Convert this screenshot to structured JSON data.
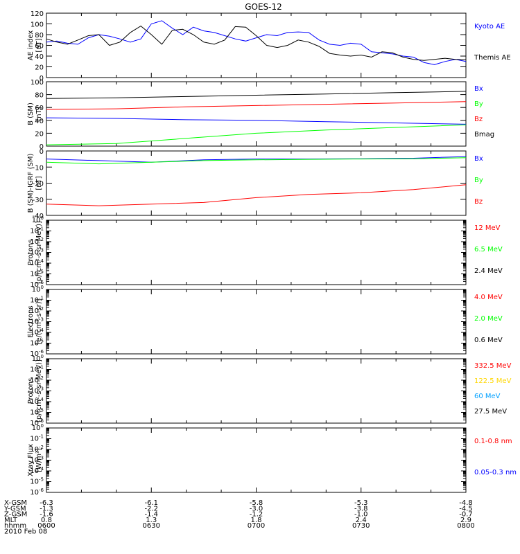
{
  "title": "GOES-12",
  "colors": {
    "black": "#000000",
    "blue": "#0000ff",
    "red": "#ff0000",
    "green": "#00ff00",
    "yellow": "#ffd700",
    "cyan": "#00a0ff"
  },
  "x_axis": {
    "rows": [
      {
        "label": "X-GSM",
        "values": [
          "-6.3",
          "-6.1",
          "-5.8",
          "-5.3",
          "-4.8"
        ]
      },
      {
        "label": "Y-GSM",
        "values": [
          "-1.3",
          "-2.2",
          "-3.0",
          "-3.8",
          "-4.5"
        ]
      },
      {
        "label": "Z-GSM",
        "values": [
          "-1.6",
          "-1.4",
          "-1.2",
          "-1.0",
          "-0.7"
        ]
      },
      {
        "label": "MLT",
        "values": [
          "0.8",
          "1.3",
          "1.8",
          "2.4",
          "2.9"
        ]
      },
      {
        "label": "hhmm",
        "values": [
          "0600",
          "0630",
          "0700",
          "0730",
          "0800"
        ]
      }
    ],
    "date": "2010 Feb 08"
  },
  "chart_data": [
    {
      "type": "line",
      "ylabel": "AE index",
      "yunit": "[nT]",
      "ylim": [
        0,
        120
      ],
      "yticks": [
        "0",
        "20",
        "40",
        "60",
        "80",
        "100",
        "120"
      ],
      "xlim": [
        0,
        120
      ],
      "series": [
        {
          "name": "Kyoto AE",
          "color": "#0000ff",
          "x": [
            0,
            3,
            6,
            9,
            12,
            15,
            18,
            21,
            24,
            27,
            30,
            33,
            36,
            39,
            42,
            45,
            48,
            51,
            54,
            57,
            60,
            63,
            66,
            69,
            72,
            75,
            78,
            81,
            84,
            87,
            90,
            93,
            96,
            99,
            102,
            105,
            108,
            111,
            114,
            117,
            120
          ],
          "y": [
            66,
            68,
            64,
            62,
            74,
            80,
            77,
            72,
            66,
            72,
            100,
            106,
            92,
            80,
            94,
            87,
            84,
            78,
            72,
            68,
            74,
            80,
            78,
            84,
            85,
            84,
            70,
            62,
            60,
            64,
            62,
            48,
            46,
            44,
            40,
            38,
            28,
            24,
            30,
            34,
            30
          ]
        },
        {
          "name": "Themis AE",
          "color": "#000000",
          "x": [
            0,
            3,
            6,
            9,
            12,
            15,
            18,
            21,
            24,
            27,
            30,
            33,
            36,
            39,
            42,
            45,
            48,
            51,
            54,
            57,
            60,
            63,
            66,
            69,
            72,
            75,
            78,
            81,
            84,
            87,
            90,
            93,
            96,
            99,
            102,
            105,
            108,
            111,
            114,
            117,
            120
          ],
          "y": [
            72,
            66,
            62,
            70,
            78,
            80,
            60,
            66,
            84,
            96,
            80,
            62,
            88,
            90,
            80,
            66,
            62,
            70,
            95,
            94,
            78,
            60,
            56,
            60,
            70,
            66,
            58,
            45,
            42,
            40,
            42,
            38,
            48,
            46,
            38,
            34,
            32,
            34,
            36,
            34,
            33
          ]
        }
      ],
      "legend": [
        {
          "text": "Kyoto AE",
          "color": "#0000ff"
        },
        {
          "text": "Themis AE",
          "color": "#000000"
        }
      ]
    },
    {
      "type": "line",
      "ylabel": "B (SM)",
      "yunit": "[nT]",
      "ylim": [
        0,
        100
      ],
      "yticks": [
        "0",
        "20",
        "40",
        "60",
        "80",
        "100"
      ],
      "xlim": [
        0,
        120
      ],
      "series": [
        {
          "name": "Bx",
          "color": "#0000ff",
          "x": [
            0,
            20,
            40,
            60,
            80,
            100,
            120
          ],
          "y": [
            44,
            43,
            41,
            40,
            38,
            36,
            34
          ]
        },
        {
          "name": "By",
          "color": "#00ff00",
          "x": [
            0,
            20,
            40,
            60,
            80,
            100,
            120
          ],
          "y": [
            2,
            4,
            12,
            20,
            25,
            29,
            33
          ]
        },
        {
          "name": "Bz",
          "color": "#ff0000",
          "x": [
            0,
            20,
            40,
            60,
            80,
            100,
            120
          ],
          "y": [
            57,
            58,
            61,
            63,
            65,
            67,
            69
          ]
        },
        {
          "name": "Bmag",
          "color": "#000000",
          "x": [
            0,
            20,
            40,
            60,
            80,
            100,
            120
          ],
          "y": [
            74,
            75,
            77,
            79,
            81,
            83,
            85
          ]
        }
      ],
      "legend": [
        {
          "text": "Bx",
          "color": "#0000ff"
        },
        {
          "text": "By",
          "color": "#00ff00"
        },
        {
          "text": "Bz",
          "color": "#ff0000"
        },
        {
          "text": "Bmag",
          "color": "#000000"
        }
      ]
    },
    {
      "type": "line",
      "ylabel": "B (SM)-IGRF (SM)",
      "yunit": "[nT]",
      "ylim": [
        -40,
        0
      ],
      "yticks": [
        "-40",
        "-30",
        "-20",
        "-10",
        "0"
      ],
      "xlim": [
        0,
        120
      ],
      "series": [
        {
          "name": "Bx",
          "color": "#0000ff",
          "x": [
            0,
            15,
            30,
            45,
            60,
            75,
            90,
            105,
            120
          ],
          "y": [
            -5,
            -6,
            -7,
            -5.5,
            -5,
            -5,
            -4.8,
            -4.5,
            -3.5
          ]
        },
        {
          "name": "By",
          "color": "#00ff00",
          "x": [
            0,
            15,
            30,
            45,
            60,
            75,
            90,
            105,
            120
          ],
          "y": [
            -7,
            -8,
            -7,
            -6,
            -5.5,
            -5.2,
            -5,
            -4.8,
            -4.2
          ]
        },
        {
          "name": "Bz",
          "color": "#ff0000",
          "x": [
            0,
            15,
            30,
            45,
            60,
            75,
            90,
            105,
            120
          ],
          "y": [
            -33,
            -34,
            -33,
            -32,
            -29,
            -27,
            -26,
            -24,
            -21
          ]
        }
      ],
      "legend": [
        {
          "text": "Bx",
          "color": "#0000ff"
        },
        {
          "text": "By",
          "color": "#00ff00"
        },
        {
          "text": "Bz",
          "color": "#ff0000"
        }
      ]
    },
    {
      "type": "line",
      "ylabel": "Protons",
      "yunit": "[p/(cm²-s-sr-MeV)]",
      "log": true,
      "ylim": [
        1e-06,
        1
      ],
      "series": [],
      "legend": [
        {
          "text": "12 MeV",
          "color": "#ff0000"
        },
        {
          "text": "6.5 MeV",
          "color": "#00ff00"
        },
        {
          "text": "2.4 MeV",
          "color": "#000000"
        }
      ]
    },
    {
      "type": "line",
      "ylabel": "Electrons",
      "yunit": "[e/(cm²-s-sr)]",
      "log": true,
      "ylim": [
        1e-06,
        1
      ],
      "series": [],
      "legend": [
        {
          "text": "4.0 MeV",
          "color": "#ff0000"
        },
        {
          "text": "2.0 MeV",
          "color": "#00ff00"
        },
        {
          "text": "0.6 MeV",
          "color": "#000000"
        }
      ]
    },
    {
      "type": "line",
      "ylabel": "Protons",
      "yunit": "[p/(cm²-s-sr-MeV)]",
      "log": true,
      "ylim": [
        1e-06,
        1
      ],
      "series": [],
      "legend": [
        {
          "text": "332.5 MeV",
          "color": "#ff0000"
        },
        {
          "text": "122.5 MeV",
          "color": "#ffd700"
        },
        {
          "text": "60 MeV",
          "color": "#00a0ff"
        },
        {
          "text": "27.5 MeV",
          "color": "#000000"
        }
      ]
    },
    {
      "type": "line",
      "ylabel": "Xray Flux",
      "yunit": "[W/m²]",
      "log": true,
      "ylim": [
        1e-06,
        1
      ],
      "series": [],
      "legend": [
        {
          "text": "0.1-0.8 nm",
          "color": "#ff0000"
        },
        {
          "text": "0.05-0.3 nm",
          "color": "#0000ff"
        }
      ]
    }
  ]
}
